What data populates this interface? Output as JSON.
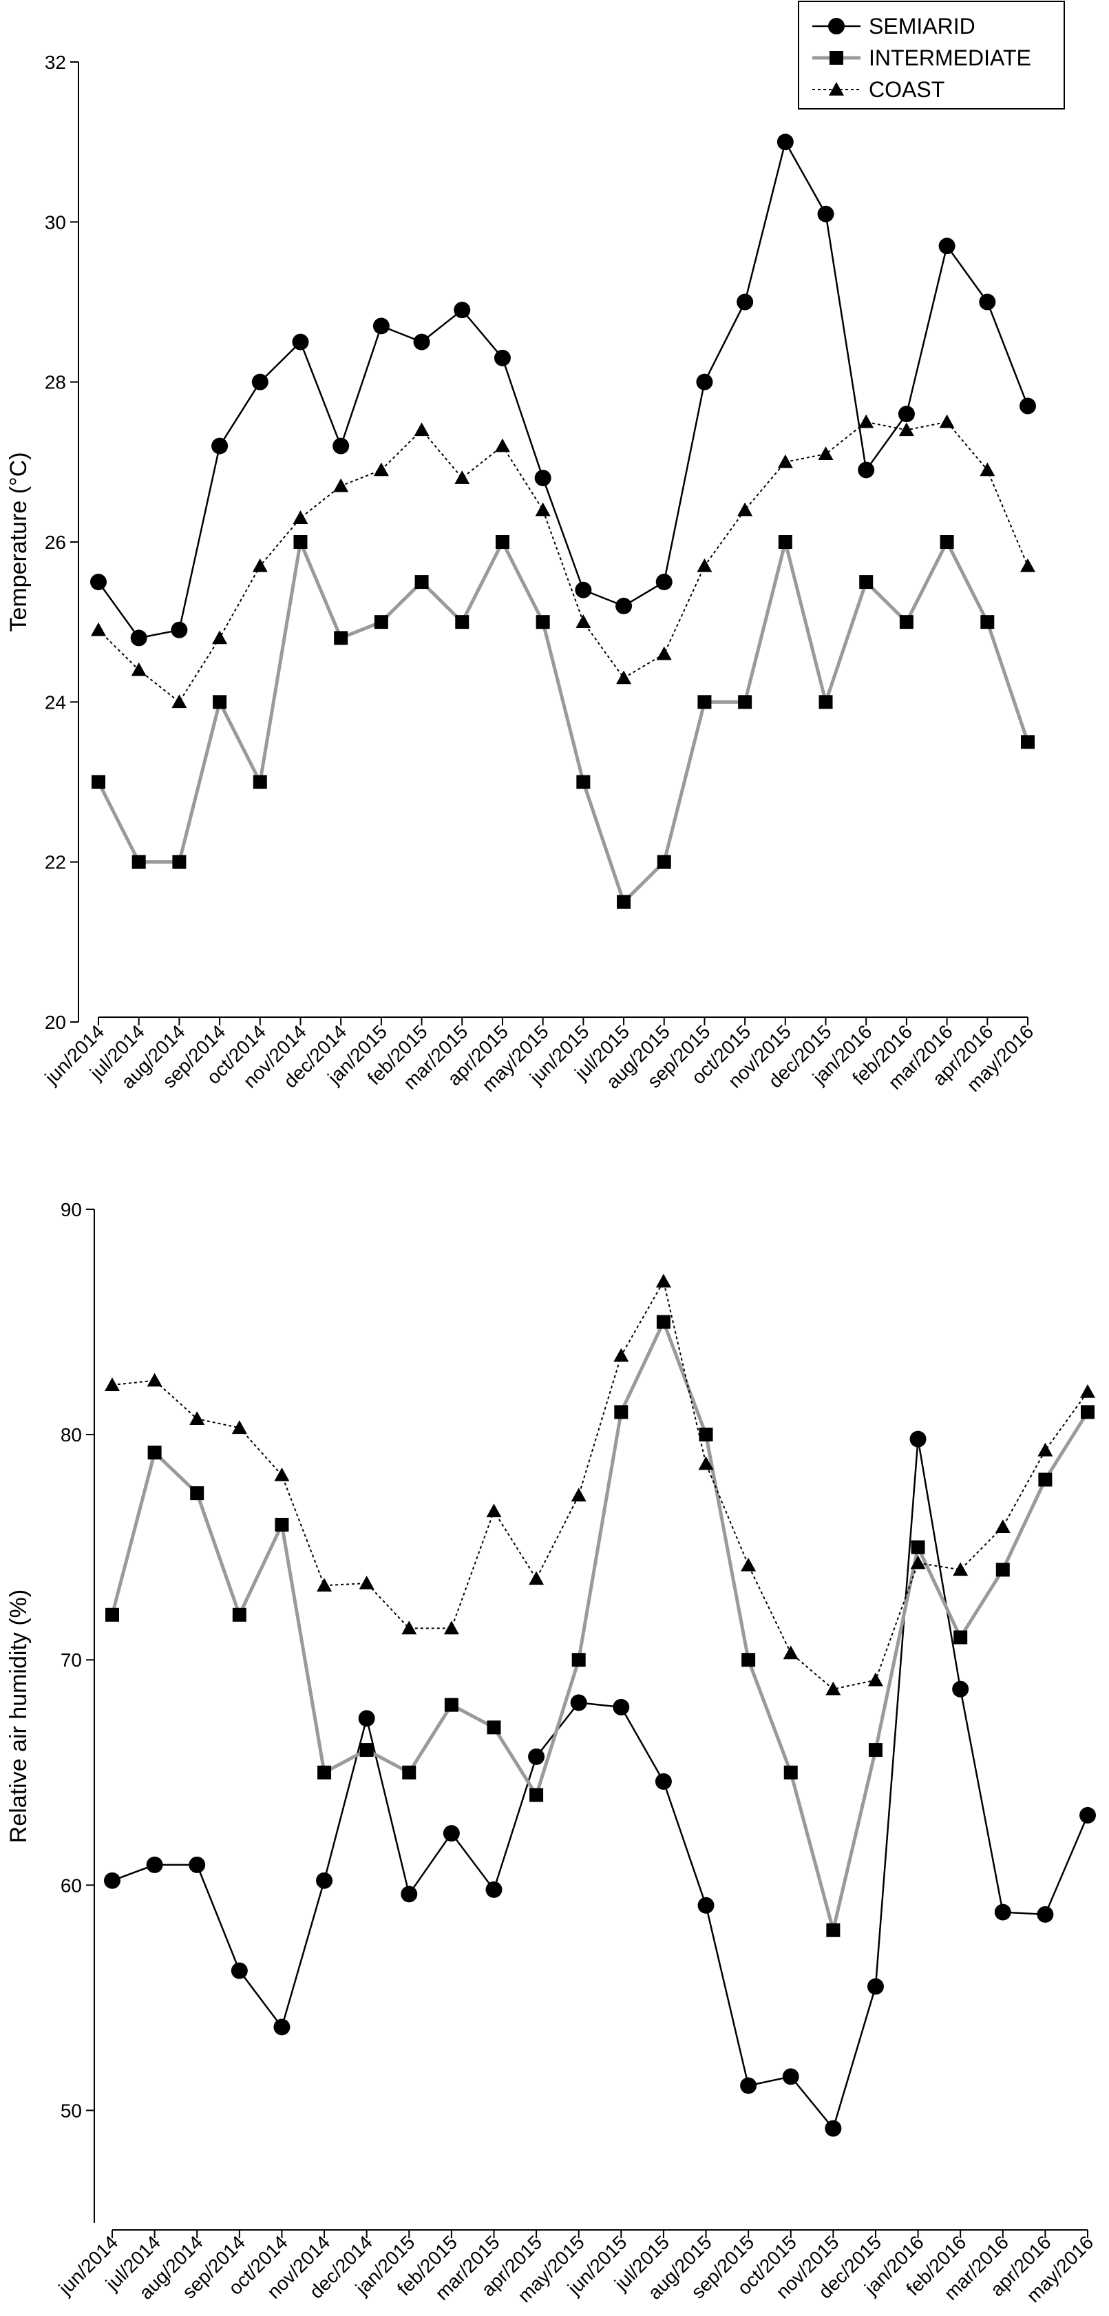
{
  "chart_data": [
    {
      "type": "line",
      "ylabel": "Temperature (°C)",
      "ylim": [
        20,
        32
      ],
      "yticks": [
        20,
        22,
        24,
        26,
        28,
        30,
        32
      ],
      "categories": [
        "jun/2014",
        "jul/2014",
        "aug/2014",
        "sep/2014",
        "oct/2014",
        "nov/2014",
        "dec/2014",
        "jan/2015",
        "feb/2015",
        "mar/2015",
        "apr/2015",
        "may/2015",
        "jun/2015",
        "jul/2015",
        "aug/2015",
        "sep/2015",
        "oct/2015",
        "nov/2015",
        "dec/2015",
        "jan/2016",
        "feb/2016",
        "mar/2016",
        "apr/2016",
        "may/2016"
      ],
      "legend": "top-right",
      "series": [
        {
          "name": "SEMIARID",
          "marker": "circle",
          "color": "#000000",
          "dash": "solid",
          "values": [
            25.5,
            24.8,
            24.9,
            27.2,
            28.0,
            28.5,
            27.2,
            28.7,
            28.5,
            28.9,
            28.3,
            26.8,
            25.4,
            25.2,
            25.5,
            28.0,
            29.0,
            31.0,
            30.1,
            26.9,
            27.6,
            29.7,
            29.0,
            27.7
          ]
        },
        {
          "name": "INTERMEDIATE",
          "marker": "square",
          "color": "#9a9a9a",
          "dash": "solid",
          "values": [
            23.0,
            22.0,
            22.0,
            24.0,
            23.0,
            26.0,
            24.8,
            25.0,
            25.5,
            25.0,
            26.0,
            25.0,
            23.0,
            21.5,
            22.0,
            24.0,
            24.0,
            26.0,
            24.0,
            25.5,
            25.0,
            26.0,
            25.0,
            23.5
          ]
        },
        {
          "name": "COAST",
          "marker": "triangle",
          "color": "#000000",
          "dash": "dotted",
          "values": [
            24.9,
            24.4,
            24.0,
            24.8,
            25.7,
            26.3,
            26.7,
            26.9,
            27.4,
            26.8,
            27.2,
            26.4,
            25.0,
            24.3,
            24.6,
            25.7,
            26.4,
            27.0,
            27.1,
            27.5,
            27.4,
            27.5,
            26.9,
            25.7
          ]
        }
      ]
    },
    {
      "type": "line",
      "ylabel": "Relative air humidity (%)",
      "ylim": [
        45,
        90
      ],
      "yticks": [
        50,
        60,
        70,
        80,
        90
      ],
      "categories": [
        "jun/2014",
        "jul/2014",
        "aug/2014",
        "sep/2014",
        "oct/2014",
        "nov/2014",
        "dec/2014",
        "jan/2015",
        "feb/2015",
        "mar/2015",
        "apr/2015",
        "may/2015",
        "jun/2015",
        "jul/2015",
        "aug/2015",
        "sep/2015",
        "oct/2015",
        "nov/2015",
        "dec/2015",
        "jan/2016",
        "feb/2016",
        "mar/2016",
        "apr/2016",
        "may/2016"
      ],
      "series": [
        {
          "name": "SEMIARID",
          "marker": "circle",
          "color": "#000000",
          "dash": "solid",
          "values": [
            60.2,
            60.9,
            60.9,
            56.2,
            53.7,
            60.2,
            67.4,
            59.6,
            62.3,
            59.8,
            65.7,
            68.1,
            67.9,
            64.6,
            59.1,
            51.1,
            51.5,
            49.2,
            55.5,
            79.8,
            68.7,
            58.8,
            58.7,
            63.1
          ]
        },
        {
          "name": "INTERMEDIATE",
          "marker": "square",
          "color": "#9a9a9a",
          "dash": "solid",
          "values": [
            72,
            79.2,
            77.4,
            72,
            76,
            65,
            66,
            65,
            68,
            67,
            64,
            70,
            81,
            85,
            80,
            70,
            65,
            58,
            66,
            75,
            71,
            74,
            78,
            81
          ]
        },
        {
          "name": "COAST",
          "marker": "triangle",
          "color": "#000000",
          "dash": "dotted",
          "values": [
            82.2,
            82.4,
            80.7,
            80.3,
            78.2,
            73.3,
            73.4,
            71.4,
            71.4,
            76.6,
            73.6,
            77.3,
            83.5,
            86.8,
            78.7,
            74.2,
            70.3,
            68.7,
            69.1,
            74.3,
            74.0,
            75.9,
            79.3,
            81.9
          ]
        }
      ]
    }
  ]
}
